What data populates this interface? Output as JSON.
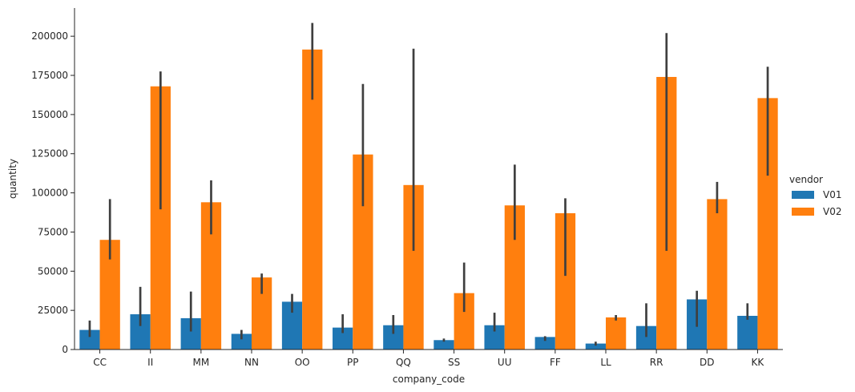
{
  "chart_data": {
    "type": "bar",
    "xlabel": "company_code",
    "ylabel": "quantity",
    "ylim": [
      0,
      218000
    ],
    "yticks": [
      0,
      25000,
      50000,
      75000,
      100000,
      125000,
      150000,
      175000,
      200000
    ],
    "categories": [
      "CC",
      "II",
      "MM",
      "NN",
      "OO",
      "PP",
      "QQ",
      "SS",
      "UU",
      "FF",
      "LL",
      "RR",
      "DD",
      "KK"
    ],
    "legend": {
      "title": "vendor",
      "placement": "right"
    },
    "series": [
      {
        "name": "V01",
        "color": "#1f77b4",
        "values": [
          12500,
          22500,
          20000,
          10000,
          30500,
          14000,
          15500,
          6000,
          15500,
          8000,
          3800,
          15000,
          32000,
          21500
        ],
        "ci_low": [
          8000,
          15000,
          11500,
          6500,
          23500,
          10500,
          10000,
          5000,
          11500,
          5500,
          2500,
          8000,
          14500,
          19000
        ],
        "ci_high": [
          18500,
          40000,
          37000,
          12500,
          35500,
          22500,
          22000,
          7000,
          23500,
          8500,
          5000,
          29500,
          37500,
          29500
        ]
      },
      {
        "name": "V02",
        "color": "#ff7f0e",
        "values": [
          70000,
          168000,
          94000,
          46000,
          191500,
          124500,
          105000,
          36000,
          92000,
          87000,
          20500,
          174000,
          96000,
          160500
        ],
        "ci_low": [
          57500,
          89500,
          73500,
          35500,
          159500,
          91500,
          63000,
          24000,
          70000,
          47000,
          18500,
          63000,
          87000,
          111000
        ],
        "ci_high": [
          96000,
          177500,
          108000,
          48500,
          208500,
          169500,
          192000,
          55500,
          118000,
          96500,
          22000,
          202000,
          107000,
          180500
        ]
      }
    ]
  }
}
